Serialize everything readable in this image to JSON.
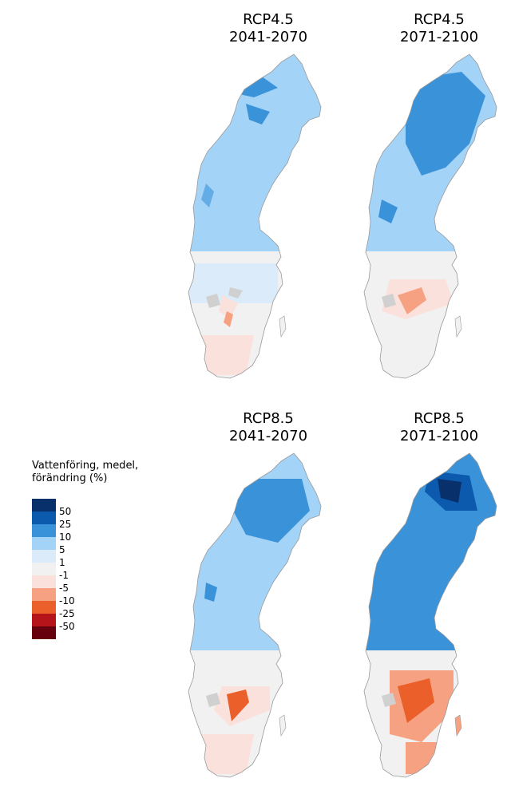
{
  "panels": [
    {
      "scenario": "RCP4.5",
      "period": "2041-2070"
    },
    {
      "scenario": "RCP4.5",
      "period": "2071-2100"
    },
    {
      "scenario": "RCP8.5",
      "period": "2041-2070"
    },
    {
      "scenario": "RCP8.5",
      "period": "2071-2100"
    }
  ],
  "legend": {
    "title_line1": "Vattenföring, medel,",
    "title_line2": "förändring (%)",
    "labels": [
      "50",
      "25",
      "10",
      "5",
      "1",
      "-1",
      "-5",
      "-10",
      "-25",
      "-50"
    ],
    "colors": [
      "#08306b",
      "#0b5aad",
      "#3a92d8",
      "#a4d3f8",
      "#dcebfa",
      "#f1f1f1",
      "#fbe1dc",
      "#f6a282",
      "#ea5f2a",
      "#b5141b",
      "#67000d"
    ]
  },
  "map_colors": {
    "north_2041_45": "#a4d3f8",
    "north_2071_45": "#a4d3f8",
    "south": "#f1f1f1",
    "lakes": "#d0d0d0",
    "boundary": "#999999"
  }
}
